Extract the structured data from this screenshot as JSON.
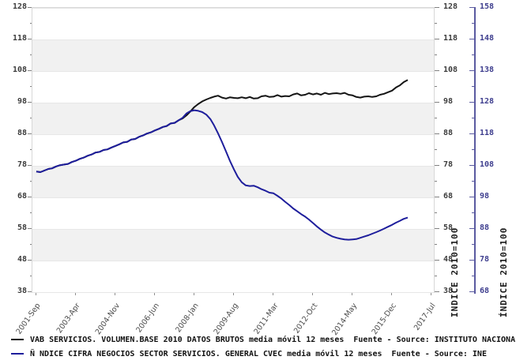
{
  "axes": {
    "left": {
      "ticks": [
        128,
        118,
        108,
        98,
        88,
        78,
        68,
        58,
        48,
        38
      ]
    },
    "right_black": {
      "ticks": [
        128,
        118,
        108,
        98,
        88,
        78,
        68,
        58,
        48,
        38
      ],
      "title": "INDICE 2010=100"
    },
    "right_blue": {
      "ticks": [
        158,
        148,
        138,
        128,
        118,
        108,
        98,
        88,
        78,
        68
      ],
      "title": "ÍNDICE 2010=100",
      "color": "#3e3e8e"
    },
    "x": {
      "ticks": [
        {
          "t": 2001.75,
          "label": "2001-Sep"
        },
        {
          "t": 2003.33,
          "label": "2003-Apr"
        },
        {
          "t": 2004.92,
          "label": "2004-Nov"
        },
        {
          "t": 2006.5,
          "label": "2006-Jun"
        },
        {
          "t": 2008.08,
          "label": "2008-Jan"
        },
        {
          "t": 2009.67,
          "label": "2009-Aug"
        },
        {
          "t": 2011.25,
          "label": "2011-Mar"
        },
        {
          "t": 2012.83,
          "label": "2012-Oct"
        },
        {
          "t": 2014.42,
          "label": "2014-May"
        },
        {
          "t": 2016.0,
          "label": "2015-Dec"
        },
        {
          "t": 2017.58,
          "label": "2017-Jul"
        }
      ]
    }
  },
  "legend": {
    "items": [
      {
        "label": "VAB SERVICIOS. VOLUMEN.BASE 2010 DATOS BRUTOS media móvil 12 meses  Fuente - Source: INSTITUTO NACIONAL DE",
        "color": "#141414"
      },
      {
        "label": "Ñ NDICE CIFRA NEGOCIOS SECTOR SERVICIOS. GENERAL CVEC media móvil 12 meses  Fuente - Source: INE",
        "color": "#1e1e9c"
      }
    ]
  },
  "chart_data": {
    "type": "line",
    "title": "",
    "grid": "alternating horizontal gray bands every 10 units",
    "legend_position": "bottom-left",
    "x_axis": {
      "label": "",
      "tick_labels": [
        "2001-Sep",
        "2003-Apr",
        "2004-Nov",
        "2006-Jun",
        "2008-Jan",
        "2009-Aug",
        "2011-Mar",
        "2012-Oct",
        "2014-May",
        "2015-Dec",
        "2017-Jul"
      ],
      "range_t": [
        2001.75,
        2017.75
      ]
    },
    "y_axis_left": {
      "label": "INDICE 2010=100",
      "range": [
        38,
        128
      ],
      "tick_step": 10
    },
    "y_axis_right": {
      "label": "ÍNDICE 2010=100",
      "range": [
        68,
        158
      ],
      "tick_step": 10
    },
    "series": [
      {
        "name": "VAB SERVICIOS. VOLUMEN.BASE 2010 DATOS BRUTOS media móvil 12 meses",
        "source": "INSTITUTO NACIONAL DE",
        "color": "#141414",
        "axis": "left",
        "points": [
          [
            2001.75,
            76.2
          ],
          [
            2001.91,
            76
          ],
          [
            2002.07,
            76.5
          ],
          [
            2002.23,
            77
          ],
          [
            2002.38,
            77.2
          ],
          [
            2002.54,
            77.8
          ],
          [
            2002.7,
            78.2
          ],
          [
            2002.86,
            78.4
          ],
          [
            2003.02,
            78.6
          ],
          [
            2003.17,
            79.2
          ],
          [
            2003.33,
            79.6
          ],
          [
            2003.49,
            80.2
          ],
          [
            2003.65,
            80.6
          ],
          [
            2003.81,
            81.2
          ],
          [
            2003.97,
            81.6
          ],
          [
            2004.12,
            82.2
          ],
          [
            2004.28,
            82.4
          ],
          [
            2004.44,
            83
          ],
          [
            2004.6,
            83.2
          ],
          [
            2004.76,
            83.8
          ],
          [
            2004.92,
            84.3
          ],
          [
            2005.07,
            84.8
          ],
          [
            2005.23,
            85.4
          ],
          [
            2005.39,
            85.6
          ],
          [
            2005.55,
            86.3
          ],
          [
            2005.71,
            86.5
          ],
          [
            2005.87,
            87.2
          ],
          [
            2006.02,
            87.6
          ],
          [
            2006.18,
            88.2
          ],
          [
            2006.34,
            88.6
          ],
          [
            2006.5,
            89.2
          ],
          [
            2006.66,
            89.7
          ],
          [
            2006.82,
            90.3
          ],
          [
            2006.97,
            90.6
          ],
          [
            2007.13,
            91.4
          ],
          [
            2007.29,
            91.6
          ],
          [
            2007.45,
            92.4
          ],
          [
            2007.61,
            93
          ],
          [
            2007.77,
            94
          ],
          [
            2007.92,
            95.2
          ],
          [
            2008.08,
            96.6
          ],
          [
            2008.24,
            97.6
          ],
          [
            2008.4,
            98.4
          ],
          [
            2008.56,
            99
          ],
          [
            2008.72,
            99.5
          ],
          [
            2008.87,
            99.9
          ],
          [
            2009.03,
            100.2
          ],
          [
            2009.19,
            99.6
          ],
          [
            2009.35,
            99.3
          ],
          [
            2009.51,
            99.7
          ],
          [
            2009.67,
            99.5
          ],
          [
            2009.82,
            99.4
          ],
          [
            2009.98,
            99.7
          ],
          [
            2010.14,
            99.4
          ],
          [
            2010.3,
            99.8
          ],
          [
            2010.46,
            99.3
          ],
          [
            2010.62,
            99.4
          ],
          [
            2010.77,
            100
          ],
          [
            2010.93,
            100.2
          ],
          [
            2011.09,
            99.8
          ],
          [
            2011.25,
            99.9
          ],
          [
            2011.41,
            100.4
          ],
          [
            2011.57,
            99.9
          ],
          [
            2011.72,
            100.1
          ],
          [
            2011.88,
            100
          ],
          [
            2012.04,
            100.6
          ],
          [
            2012.2,
            100.9
          ],
          [
            2012.36,
            100.3
          ],
          [
            2012.52,
            100.5
          ],
          [
            2012.67,
            101
          ],
          [
            2012.83,
            100.6
          ],
          [
            2012.99,
            100.9
          ],
          [
            2013.15,
            100.5
          ],
          [
            2013.31,
            101.1
          ],
          [
            2013.47,
            100.7
          ],
          [
            2013.62,
            100.9
          ],
          [
            2013.78,
            101
          ],
          [
            2013.94,
            100.8
          ],
          [
            2014.1,
            101.1
          ],
          [
            2014.26,
            100.5
          ],
          [
            2014.42,
            100.3
          ],
          [
            2014.57,
            99.8
          ],
          [
            2014.73,
            99.6
          ],
          [
            2014.89,
            99.9
          ],
          [
            2015.05,
            100
          ],
          [
            2015.21,
            99.8
          ],
          [
            2015.37,
            100
          ],
          [
            2015.52,
            100.5
          ],
          [
            2015.68,
            100.8
          ],
          [
            2015.84,
            101.3
          ],
          [
            2016,
            101.8
          ],
          [
            2016.16,
            102.8
          ],
          [
            2016.32,
            103.5
          ],
          [
            2016.47,
            104.5
          ],
          [
            2016.63,
            105.2
          ]
        ]
      },
      {
        "name": "Ñ NDICE CIFRA NEGOCIOS SECTOR SERVICIOS. GENERAL CVEC media móvil 12 meses",
        "source": "INE",
        "color": "#1e1e9c",
        "axis": "right_blue",
        "points": [
          [
            2001.75,
            106.2
          ],
          [
            2001.91,
            106
          ],
          [
            2002.07,
            106.5
          ],
          [
            2002.23,
            107
          ],
          [
            2002.38,
            107.2
          ],
          [
            2002.54,
            107.8
          ],
          [
            2002.7,
            108.2
          ],
          [
            2002.86,
            108.4
          ],
          [
            2003.02,
            108.6
          ],
          [
            2003.17,
            109.2
          ],
          [
            2003.33,
            109.6
          ],
          [
            2003.49,
            110.2
          ],
          [
            2003.65,
            110.6
          ],
          [
            2003.81,
            111.2
          ],
          [
            2003.97,
            111.6
          ],
          [
            2004.12,
            112.2
          ],
          [
            2004.28,
            112.4
          ],
          [
            2004.44,
            113
          ],
          [
            2004.6,
            113.2
          ],
          [
            2004.76,
            113.8
          ],
          [
            2004.92,
            114.3
          ],
          [
            2005.07,
            114.8
          ],
          [
            2005.23,
            115.4
          ],
          [
            2005.39,
            115.6
          ],
          [
            2005.55,
            116.3
          ],
          [
            2005.71,
            116.5
          ],
          [
            2005.87,
            117.2
          ],
          [
            2006.02,
            117.6
          ],
          [
            2006.18,
            118.2
          ],
          [
            2006.34,
            118.6
          ],
          [
            2006.5,
            119.2
          ],
          [
            2006.66,
            119.7
          ],
          [
            2006.82,
            120.3
          ],
          [
            2006.97,
            120.6
          ],
          [
            2007.13,
            121.4
          ],
          [
            2007.29,
            121.6
          ],
          [
            2007.45,
            122.4
          ],
          [
            2007.61,
            123.2
          ],
          [
            2007.77,
            124.6
          ],
          [
            2007.92,
            125.3
          ],
          [
            2008.08,
            125.6
          ],
          [
            2008.24,
            125.4
          ],
          [
            2008.4,
            125
          ],
          [
            2008.56,
            124.2
          ],
          [
            2008.72,
            122.8
          ],
          [
            2008.87,
            120.8
          ],
          [
            2009.03,
            118.3
          ],
          [
            2009.19,
            115.5
          ],
          [
            2009.35,
            112.5
          ],
          [
            2009.51,
            109.5
          ],
          [
            2009.67,
            106.8
          ],
          [
            2009.82,
            104.5
          ],
          [
            2009.98,
            102.8
          ],
          [
            2010.14,
            101.8
          ],
          [
            2010.3,
            101.6
          ],
          [
            2010.46,
            101.7
          ],
          [
            2010.62,
            101.2
          ],
          [
            2010.77,
            100.6
          ],
          [
            2010.93,
            100.1
          ],
          [
            2011.09,
            99.5
          ],
          [
            2011.25,
            99.3
          ],
          [
            2011.41,
            98.5
          ],
          [
            2011.57,
            97.6
          ],
          [
            2011.72,
            96.6
          ],
          [
            2011.88,
            95.6
          ],
          [
            2012.04,
            94.5
          ],
          [
            2012.2,
            93.6
          ],
          [
            2012.36,
            92.7
          ],
          [
            2012.52,
            91.9
          ],
          [
            2012.67,
            91
          ],
          [
            2012.83,
            89.9
          ],
          [
            2012.99,
            88.8
          ],
          [
            2013.15,
            87.8
          ],
          [
            2013.31,
            86.9
          ],
          [
            2013.47,
            86.2
          ],
          [
            2013.62,
            85.6
          ],
          [
            2013.78,
            85.2
          ],
          [
            2013.94,
            84.9
          ],
          [
            2014.1,
            84.7
          ],
          [
            2014.26,
            84.6
          ],
          [
            2014.42,
            84.7
          ],
          [
            2014.57,
            84.8
          ],
          [
            2014.73,
            85.2
          ],
          [
            2014.89,
            85.6
          ],
          [
            2015.05,
            86
          ],
          [
            2015.21,
            86.5
          ],
          [
            2015.37,
            87
          ],
          [
            2015.52,
            87.5
          ],
          [
            2015.68,
            88.1
          ],
          [
            2015.84,
            88.7
          ],
          [
            2016,
            89.3
          ],
          [
            2016.16,
            90
          ],
          [
            2016.32,
            90.6
          ],
          [
            2016.47,
            91.2
          ],
          [
            2016.63,
            91.6
          ]
        ]
      }
    ]
  }
}
